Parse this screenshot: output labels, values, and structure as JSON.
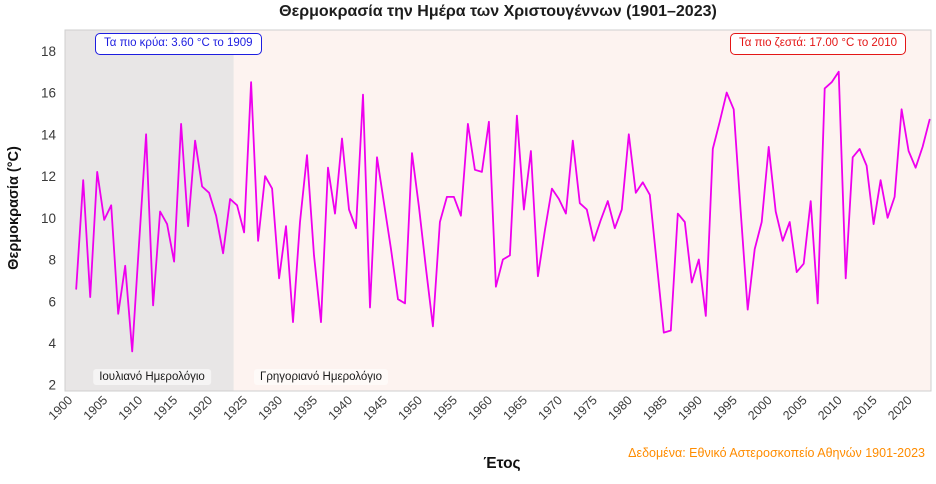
{
  "title": "Θερμοκρασία την Ημέρα των Χριστουγέννων (1901–2023)",
  "annotations": {
    "coldest": "Τα πιο κρύα: 3.60 °C το 1909",
    "hottest": "Τα πιο ζεστά: 17.00 °C το 2010"
  },
  "era_labels": {
    "julian": "Ιουλιανό Ημερολόγιο",
    "gregorian": "Γρηγοριανό Ημερολόγιο"
  },
  "footer": "Δεδομένα: Εθνικό Αστεροσκοπείο Αθηνών 1901-2023",
  "colors": {
    "line": "#ee00ee",
    "cold_blue": "#1d1de0",
    "hot_red": "#e41616",
    "footer_orange": "#ff8c00",
    "plot_bg": "#fdf3f0",
    "julian_band": "#e8e6e6",
    "spine": "#cfcfcf",
    "tick_text": "#3a3a3a"
  },
  "chart_data": {
    "type": "line",
    "title": "Θερμοκρασία την Ημέρα των Χριστουγέννων (1901–2023)",
    "xlabel": "Έτος",
    "ylabel": "Θερμοκρασία (°C)",
    "legend": "none",
    "grid": false,
    "x_start": 1901,
    "x_end": 2023,
    "xticks": [
      1900,
      1905,
      1910,
      1915,
      1920,
      1925,
      1930,
      1935,
      1940,
      1945,
      1950,
      1955,
      1960,
      1965,
      1970,
      1975,
      1980,
      1985,
      1990,
      1995,
      2000,
      2005,
      2010,
      2015,
      2020
    ],
    "yticks": [
      2,
      4,
      6,
      8,
      10,
      12,
      14,
      16,
      18
    ],
    "xlim": [
      1899.4,
      2023.2
    ],
    "ylim": [
      1.7,
      19.0
    ],
    "julian_band_end_year": 1923.5,
    "min": {
      "year": 1909,
      "value": 3.6
    },
    "max": {
      "year": 2010,
      "value": 17.0
    },
    "values": [
      6.6,
      11.8,
      6.2,
      12.2,
      9.9,
      10.6,
      5.4,
      7.7,
      3.6,
      8.8,
      14.0,
      5.8,
      10.3,
      9.7,
      7.9,
      14.5,
      9.6,
      13.7,
      11.5,
      11.2,
      10.1,
      8.3,
      10.9,
      10.6,
      9.3,
      16.5,
      8.9,
      12.0,
      11.4,
      7.1,
      9.6,
      5.0,
      9.8,
      13.0,
      8.2,
      5.0,
      12.4,
      10.2,
      13.8,
      10.4,
      9.5,
      15.9,
      5.7,
      12.9,
      10.7,
      8.5,
      6.1,
      5.9,
      13.1,
      10.5,
      7.6,
      4.8,
      9.8,
      11.0,
      11.0,
      10.1,
      14.5,
      12.3,
      12.2,
      14.6,
      6.7,
      8.0,
      8.2,
      14.9,
      10.4,
      13.2,
      7.2,
      9.4,
      11.4,
      10.9,
      10.2,
      13.7,
      10.7,
      10.4,
      8.9,
      9.9,
      10.8,
      9.5,
      10.4,
      14.0,
      11.2,
      11.7,
      11.1,
      7.8,
      4.5,
      4.6,
      10.2,
      9.8,
      6.9,
      8.0,
      5.3,
      13.3,
      14.6,
      16.0,
      15.2,
      10.3,
      5.6,
      8.5,
      9.8,
      13.4,
      10.3,
      8.9,
      9.8,
      7.4,
      7.8,
      10.8,
      5.9,
      16.2,
      16.5,
      17.0,
      7.1,
      12.9,
      13.3,
      12.5,
      9.7,
      11.8,
      10.0,
      11.0,
      15.2,
      13.2,
      12.4,
      13.4,
      14.7
    ]
  }
}
